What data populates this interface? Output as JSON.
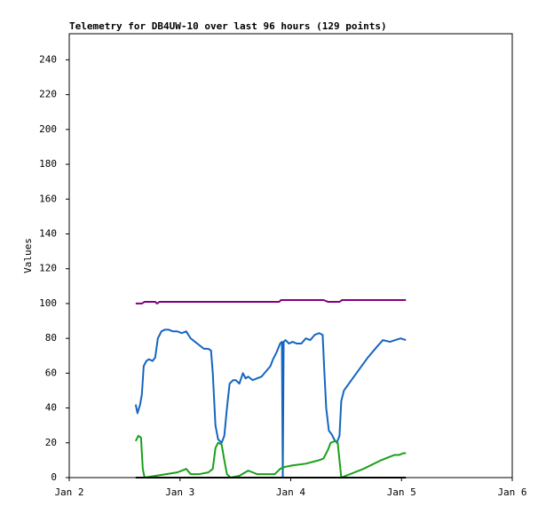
{
  "chart_data": {
    "type": "line",
    "title": "Telemetry for DB4UW-10 over last 96 hours (129 points)",
    "y_label": "Values",
    "xlim": [
      0,
      4
    ],
    "xticks": [
      {
        "value": 0,
        "label": "Jan 2"
      },
      {
        "value": 1,
        "label": "Jan 3"
      },
      {
        "value": 2,
        "label": "Jan 4"
      },
      {
        "value": 3,
        "label": "Jan 5"
      },
      {
        "value": 4,
        "label": "Jan 6"
      }
    ],
    "ylim": [
      0,
      255
    ],
    "yticks": [
      0,
      20,
      40,
      60,
      80,
      100,
      120,
      140,
      160,
      180,
      200,
      220,
      240
    ],
    "grid": false,
    "series": [
      {
        "color": "#800080",
        "x": [
          0.6,
          0.656,
          0.68,
          0.776,
          0.792,
          0.816,
          1.376,
          1.896,
          1.912,
          2.296,
          2.336,
          2.44,
          2.464,
          3.04
        ],
        "values": [
          100,
          100,
          101,
          101,
          100,
          101,
          101,
          101,
          102,
          102,
          101,
          101,
          102,
          102
        ]
      },
      {
        "color": "#1565c0",
        "x": [
          0.6,
          0.616,
          0.64,
          0.656,
          0.672,
          0.696,
          0.72,
          0.752,
          0.776,
          0.8,
          0.832,
          0.864,
          0.896,
          0.936,
          0.976,
          1.016,
          1.056,
          1.096,
          1.136,
          1.176,
          1.216,
          1.256,
          1.28,
          1.296,
          1.32,
          1.344,
          1.376,
          1.4,
          1.424,
          1.448,
          1.48,
          1.504,
          1.536,
          1.568,
          1.592,
          1.616,
          1.656,
          1.696,
          1.736,
          1.776,
          1.816,
          1.84,
          1.872,
          1.904,
          1.92,
          1.928,
          1.936,
          1.952,
          1.984,
          2.016,
          2.056,
          2.096,
          2.136,
          2.176,
          2.216,
          2.256,
          2.288,
          2.304,
          2.32,
          2.344,
          2.368,
          2.392,
          2.416,
          2.44,
          2.456,
          2.48,
          2.536,
          2.616,
          2.696,
          2.776,
          2.832,
          2.896,
          2.944,
          2.992,
          3.04
        ],
        "values": [
          42,
          37,
          42,
          48,
          64,
          67,
          68,
          67,
          69,
          80,
          84,
          85,
          85,
          84,
          84,
          83,
          84,
          80,
          78,
          76,
          74,
          74,
          73,
          60,
          30,
          22,
          20,
          24,
          40,
          54,
          56,
          56,
          54,
          60,
          57,
          58,
          56,
          57,
          58,
          61,
          64,
          68,
          72,
          77,
          78,
          0,
          78,
          79,
          77,
          78,
          77,
          77,
          80,
          79,
          82,
          83,
          82,
          60,
          40,
          27,
          25,
          22,
          20,
          24,
          44,
          50,
          55,
          62,
          69,
          75,
          79,
          78,
          79,
          80,
          79
        ]
      },
      {
        "color": "#1aa01a",
        "x": [
          0.6,
          0.624,
          0.648,
          0.664,
          0.68,
          0.976,
          1.016,
          1.056,
          1.096,
          1.176,
          1.256,
          1.296,
          1.32,
          1.344,
          1.376,
          1.4,
          1.424,
          1.456,
          1.536,
          1.616,
          1.656,
          1.696,
          1.856,
          1.904,
          1.936,
          2.016,
          2.136,
          2.256,
          2.296,
          2.336,
          2.36,
          2.4,
          2.424,
          2.456,
          2.656,
          2.816,
          2.896,
          2.936,
          2.976,
          3.016,
          3.04
        ],
        "values": [
          21,
          24,
          23,
          5,
          0,
          3,
          4,
          5,
          2,
          2,
          3,
          5,
          17,
          20,
          19,
          10,
          2,
          0,
          1,
          4,
          3,
          2,
          2,
          5,
          6,
          7,
          8,
          10,
          11,
          16,
          20,
          21,
          20,
          0,
          5,
          10,
          12,
          13,
          13,
          14,
          14
        ]
      },
      {
        "color": "#000000",
        "x": [
          0.6,
          3.04
        ],
        "values": [
          0,
          0
        ]
      }
    ]
  }
}
